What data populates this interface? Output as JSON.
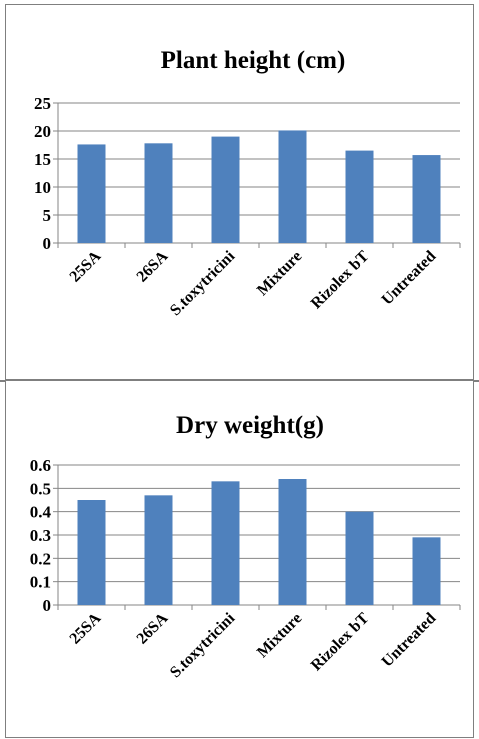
{
  "chart_data": [
    {
      "type": "bar",
      "title": "Plant height (cm)",
      "xlabel": "",
      "ylabel": "",
      "categories": [
        "25SA",
        "26SA",
        "S.toxytricini",
        "Mixture",
        "Rizolex bT",
        "Untreated"
      ],
      "values": [
        17.6,
        17.8,
        19.0,
        20.1,
        16.5,
        15.7
      ],
      "ylim": [
        0,
        25
      ],
      "yticks": [
        "0",
        "5",
        "10",
        "15",
        "20",
        "25"
      ],
      "grid": true,
      "legend": "none",
      "bar_color": "#4f81bd"
    },
    {
      "type": "bar",
      "title": "Dry weight(g)",
      "xlabel": "",
      "ylabel": "",
      "categories": [
        "25SA",
        "26SA",
        "S.toxytricini",
        "Mixture",
        "Rizolex bT",
        "Untreated"
      ],
      "values": [
        0.45,
        0.47,
        0.53,
        0.54,
        0.4,
        0.29
      ],
      "ylim": [
        0,
        0.6
      ],
      "yticks": [
        "0",
        "0.1",
        "0.2",
        "0.3",
        "0.4",
        "0.5",
        "0.6"
      ],
      "grid": true,
      "legend": "none",
      "bar_color": "#4f81bd"
    }
  ]
}
